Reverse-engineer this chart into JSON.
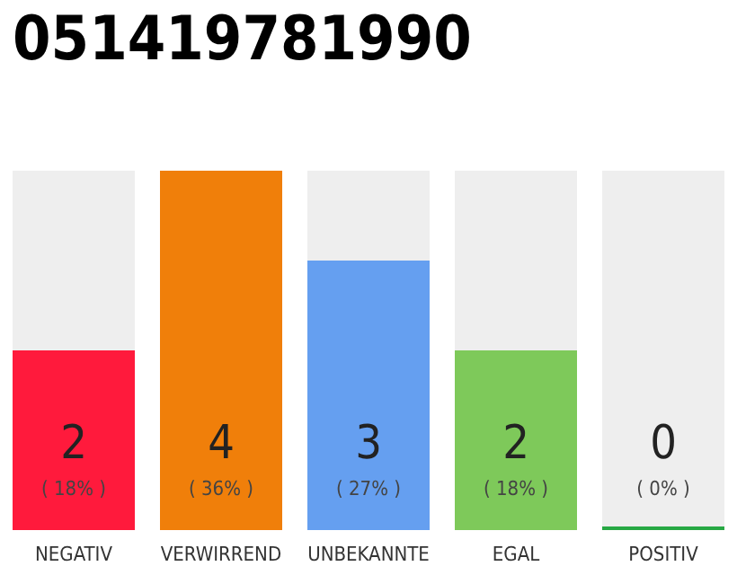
{
  "chart_data": {
    "type": "bar",
    "title": "051419781990",
    "categories": [
      "NEGATIV",
      "VERWIRREND",
      "UNBEKANNTE",
      "EGAL",
      "POSITIV"
    ],
    "values": [
      2,
      4,
      3,
      2,
      0
    ],
    "colors": [
      "#ff1a3c",
      "#f07f0a",
      "#659ff0",
      "#7ec95a",
      "#27a844"
    ],
    "value_labels": [
      "2\n( 18% )",
      "4\n( 36% )",
      "3\n( 27% )",
      "2\n( 18% )",
      "0\n( 0% )"
    ]
  }
}
